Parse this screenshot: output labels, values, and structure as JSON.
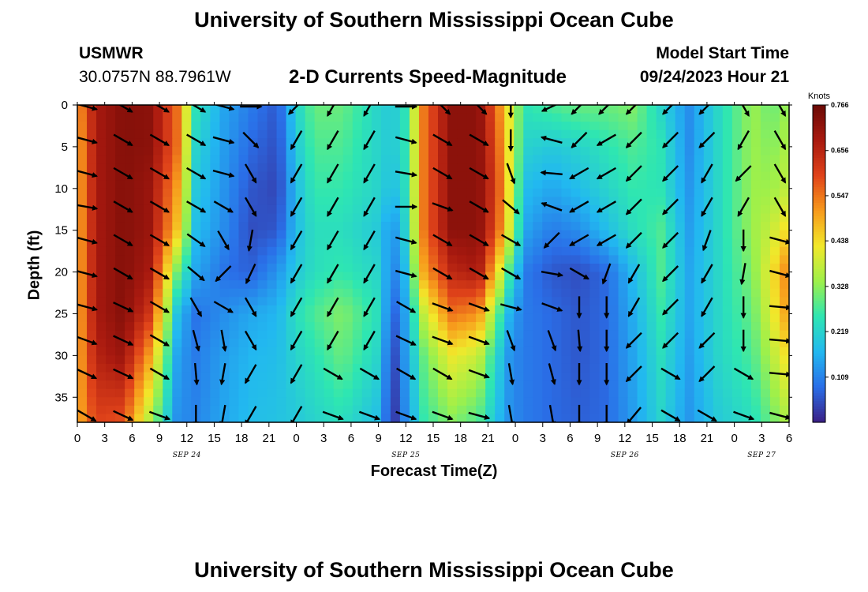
{
  "header": {
    "title": "University of Southern Mississippi Ocean Cube",
    "station_id": "USMWR",
    "station_coords": "30.0757N  88.7961W",
    "subtitle": "2-D Currents Speed-Magnitude",
    "model_label": "Model Start Time",
    "model_time": "09/24/2023 Hour 21"
  },
  "footer": {
    "title": "University of Southern Mississippi Ocean Cube"
  },
  "chart_data": {
    "type": "heatmap",
    "title": "2-D Currents Speed-Magnitude",
    "xlabel": "Forecast Time(Z)",
    "ylabel": "Depth (ft)",
    "x_hours_range": [
      0,
      78
    ],
    "x_tick_step_hours": 3,
    "x_tick_labels": [
      "0",
      "3",
      "6",
      "9",
      "12",
      "15",
      "18",
      "21",
      "0",
      "3",
      "6",
      "9",
      "12",
      "15",
      "18",
      "21",
      "0",
      "3",
      "6",
      "9",
      "12",
      "15",
      "18",
      "21",
      "0",
      "3",
      "6"
    ],
    "date_labels": [
      {
        "text": "SEP 24",
        "hour": 12
      },
      {
        "text": "SEP 25",
        "hour": 36
      },
      {
        "text": "SEP 26",
        "hour": 60
      },
      {
        "text": "SEP 27",
        "hour": 75
      }
    ],
    "y_range": [
      0,
      38
    ],
    "y_ticks": [
      0,
      5,
      10,
      15,
      20,
      25,
      30,
      35
    ],
    "colorbar": {
      "units": "Knots",
      "range": [
        0,
        0.766
      ],
      "tick_labels": [
        "0.766",
        "0.656",
        "0.547",
        "0.438",
        "0.328",
        "0.219",
        "0.109"
      ],
      "colors": [
        "#3b1f86",
        "#2a6fe8",
        "#22b8f0",
        "#2ee6b2",
        "#9ef04a",
        "#f2e82a",
        "#f79a1c",
        "#e0431a",
        "#a8190f",
        "#6b0a06"
      ]
    },
    "speed_grid": {
      "x_hours": [
        0,
        2,
        5,
        8,
        11,
        13,
        16,
        19,
        22,
        24,
        26,
        29,
        33,
        34.5,
        36,
        38,
        41,
        44,
        46,
        47.5,
        49,
        52,
        55,
        58,
        61,
        64,
        67,
        70,
        74,
        76,
        78
      ],
      "depths_ft": [
        0,
        5,
        10,
        15,
        20,
        25,
        30,
        38
      ],
      "values_knots": [
        [
          0.5,
          0.68,
          0.73,
          0.72,
          0.55,
          0.25,
          0.15,
          0.1,
          0.06,
          0.22,
          0.3,
          0.3,
          0.22,
          0.2,
          0.25,
          0.55,
          0.72,
          0.72,
          0.55,
          0.4,
          0.25,
          0.28,
          0.3,
          0.3,
          0.32,
          0.22,
          0.12,
          0.22,
          0.34,
          0.3,
          0.34
        ],
        [
          0.48,
          0.68,
          0.73,
          0.72,
          0.55,
          0.22,
          0.14,
          0.08,
          0.05,
          0.2,
          0.28,
          0.28,
          0.22,
          0.2,
          0.25,
          0.55,
          0.72,
          0.72,
          0.58,
          0.4,
          0.22,
          0.2,
          0.22,
          0.25,
          0.28,
          0.25,
          0.12,
          0.22,
          0.34,
          0.32,
          0.36
        ],
        [
          0.48,
          0.68,
          0.73,
          0.7,
          0.5,
          0.2,
          0.13,
          0.06,
          0.04,
          0.18,
          0.26,
          0.26,
          0.22,
          0.18,
          0.24,
          0.55,
          0.72,
          0.72,
          0.6,
          0.4,
          0.18,
          0.15,
          0.18,
          0.22,
          0.26,
          0.25,
          0.13,
          0.22,
          0.34,
          0.34,
          0.38
        ],
        [
          0.48,
          0.68,
          0.73,
          0.7,
          0.46,
          0.18,
          0.12,
          0.05,
          0.06,
          0.18,
          0.24,
          0.24,
          0.2,
          0.12,
          0.22,
          0.55,
          0.72,
          0.72,
          0.58,
          0.38,
          0.15,
          0.1,
          0.12,
          0.18,
          0.24,
          0.28,
          0.14,
          0.22,
          0.34,
          0.38,
          0.45
        ],
        [
          0.48,
          0.68,
          0.73,
          0.68,
          0.3,
          0.15,
          0.09,
          0.07,
          0.13,
          0.2,
          0.24,
          0.26,
          0.22,
          0.1,
          0.18,
          0.5,
          0.65,
          0.68,
          0.45,
          0.25,
          0.1,
          0.06,
          0.05,
          0.08,
          0.18,
          0.28,
          0.15,
          0.22,
          0.32,
          0.42,
          0.55
        ],
        [
          0.48,
          0.68,
          0.73,
          0.62,
          0.18,
          0.09,
          0.12,
          0.15,
          0.17,
          0.24,
          0.28,
          0.32,
          0.24,
          0.06,
          0.15,
          0.38,
          0.55,
          0.52,
          0.3,
          0.15,
          0.1,
          0.08,
          0.06,
          0.08,
          0.16,
          0.26,
          0.15,
          0.22,
          0.3,
          0.4,
          0.52
        ],
        [
          0.48,
          0.66,
          0.7,
          0.5,
          0.14,
          0.1,
          0.14,
          0.17,
          0.18,
          0.22,
          0.25,
          0.3,
          0.22,
          0.03,
          0.14,
          0.3,
          0.42,
          0.38,
          0.22,
          0.12,
          0.1,
          0.08,
          0.06,
          0.08,
          0.15,
          0.24,
          0.14,
          0.22,
          0.28,
          0.36,
          0.45
        ],
        [
          0.48,
          0.6,
          0.58,
          0.35,
          0.12,
          0.11,
          0.15,
          0.18,
          0.19,
          0.2,
          0.22,
          0.24,
          0.18,
          0.01,
          0.12,
          0.26,
          0.32,
          0.28,
          0.18,
          0.12,
          0.1,
          0.08,
          0.07,
          0.08,
          0.14,
          0.22,
          0.13,
          0.2,
          0.24,
          0.3,
          0.36
        ]
      ]
    },
    "vectors": {
      "x_hours": [
        1,
        5,
        9,
        13,
        16,
        19,
        24,
        28,
        32,
        36,
        40,
        44,
        47.5,
        52,
        55,
        58,
        61,
        65,
        69,
        73,
        77
      ],
      "depths_ft": [
        0,
        4,
        8,
        12,
        16,
        20,
        24,
        28,
        32,
        37
      ],
      "angles_deg": [
        [
          -15,
          -30,
          -30,
          -30,
          -15,
          0,
          -135,
          -120,
          -120,
          0,
          -45,
          -45,
          -90,
          -155,
          -135,
          -135,
          -135,
          -135,
          -135,
          -60,
          -60
        ],
        [
          -15,
          -30,
          -30,
          -30,
          -15,
          -45,
          -120,
          -120,
          -120,
          -15,
          -30,
          -30,
          -90,
          165,
          -135,
          -150,
          -135,
          -135,
          -135,
          -120,
          -60
        ],
        [
          -15,
          -30,
          -30,
          -30,
          -15,
          -60,
          -120,
          -120,
          -120,
          -10,
          -30,
          -30,
          -70,
          175,
          -150,
          -150,
          -135,
          -135,
          -120,
          -135,
          -60
        ],
        [
          -10,
          -30,
          -30,
          -30,
          -30,
          -60,
          -120,
          -120,
          -120,
          0,
          -20,
          -30,
          -40,
          160,
          -150,
          -150,
          -135,
          -135,
          -120,
          -120,
          -60
        ],
        [
          -15,
          -30,
          -30,
          -35,
          -60,
          -100,
          -120,
          -120,
          -120,
          -15,
          -30,
          -30,
          -30,
          -135,
          -150,
          -150,
          -135,
          -135,
          -110,
          -90,
          -15
        ],
        [
          -15,
          -30,
          -30,
          -40,
          -135,
          -115,
          -120,
          -120,
          -120,
          -15,
          -30,
          -30,
          -30,
          -10,
          -30,
          -110,
          -120,
          -135,
          -120,
          -100,
          -15
        ],
        [
          -15,
          -25,
          -30,
          -60,
          -30,
          -60,
          -120,
          -120,
          -120,
          -30,
          -20,
          -20,
          -15,
          -20,
          -90,
          -90,
          -120,
          -135,
          -120,
          -90,
          -5
        ],
        [
          -20,
          -25,
          -30,
          -75,
          -80,
          -60,
          -120,
          -120,
          -120,
          -25,
          -20,
          -20,
          -70,
          -70,
          -85,
          -90,
          -135,
          -135,
          -135,
          -90,
          -5
        ],
        [
          -25,
          -25,
          -30,
          -85,
          -100,
          -120,
          -120,
          -30,
          -30,
          -30,
          -30,
          -20,
          -80,
          -75,
          -90,
          -90,
          -135,
          -30,
          -135,
          -30,
          -5
        ],
        [
          -30,
          -25,
          -20,
          -90,
          -100,
          -120,
          -120,
          -20,
          -20,
          -20,
          -20,
          -15,
          -80,
          -80,
          -90,
          -90,
          -130,
          -30,
          -30,
          -20,
          -15
        ]
      ]
    }
  }
}
